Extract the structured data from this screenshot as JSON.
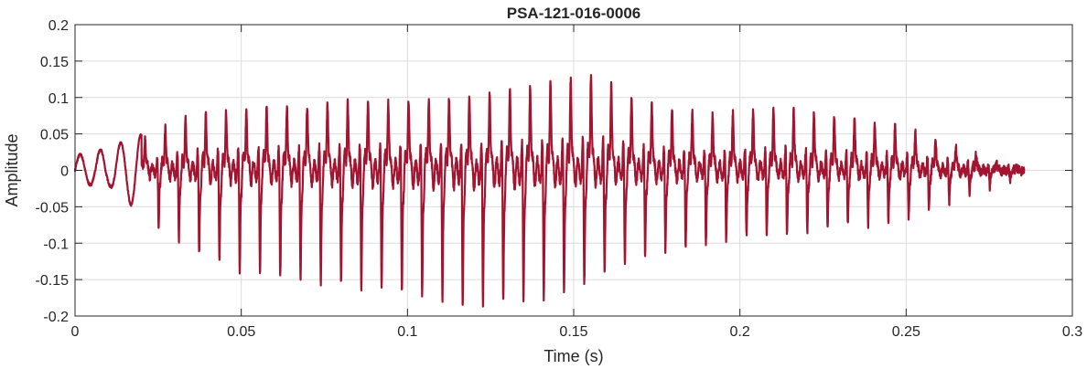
{
  "chart_data": {
    "type": "line",
    "title": "PSA-121-016-0006",
    "xlabel": "Time (s)",
    "ylabel": "Amplitude",
    "xlim": [
      0,
      0.3
    ],
    "ylim": [
      -0.2,
      0.2
    ],
    "grid": true,
    "line_color": "#a2142f",
    "x_ticks": [
      0,
      0.05,
      0.1,
      0.15,
      0.2,
      0.25,
      0.3
    ],
    "x_tick_labels": [
      "0",
      "0.05",
      "0.1",
      "0.15",
      "0.2",
      "0.25",
      "0.3"
    ],
    "y_ticks": [
      -0.2,
      -0.15,
      -0.1,
      -0.05,
      0,
      0.05,
      0.1,
      0.15,
      0.2
    ],
    "y_tick_labels": [
      "-0.2",
      "-0.15",
      "-0.1",
      "-0.05",
      "0",
      "0.05",
      "0.1",
      "0.15",
      "0.2"
    ],
    "series": [
      {
        "x_start": 0,
        "x_end": 0.2855,
        "envelope": {
          "x": [
            0,
            0.01,
            0.02,
            0.035,
            0.05,
            0.08,
            0.1,
            0.12,
            0.14,
            0.157,
            0.17,
            0.19,
            0.21,
            0.23,
            0.25,
            0.27,
            0.2855
          ],
          "upper": [
            0.02,
            0.03,
            0.05,
            0.09,
            0.1,
            0.11,
            0.115,
            0.12,
            0.14,
            0.155,
            0.11,
            0.09,
            0.1,
            0.09,
            0.07,
            0.03,
            0.0
          ],
          "lower": [
            -0.02,
            -0.02,
            -0.06,
            -0.11,
            -0.14,
            -0.16,
            -0.17,
            -0.19,
            -0.18,
            -0.15,
            -0.12,
            -0.1,
            -0.09,
            -0.08,
            -0.07,
            -0.03,
            -0.01
          ]
        },
        "fundamental_hz": 164
      }
    ]
  }
}
